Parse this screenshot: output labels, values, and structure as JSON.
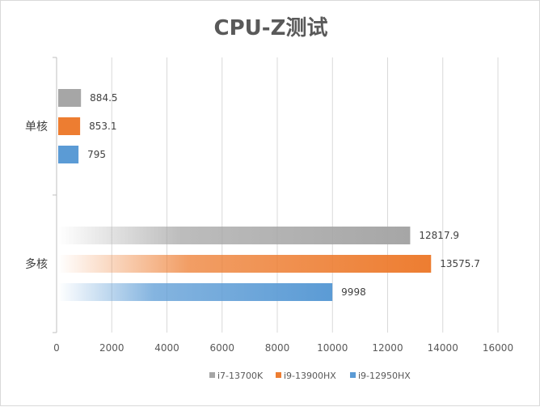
{
  "chart_data": {
    "type": "bar",
    "orientation": "horizontal",
    "title": "CPU-Z测试",
    "categories": [
      "单核",
      "多核"
    ],
    "series": [
      {
        "name": "i7-13700K",
        "color": "#a6a6a6",
        "values": [
          884.5,
          12817.9
        ],
        "labels": [
          "884.5",
          "12817.9"
        ]
      },
      {
        "name": "i9-13900HX",
        "color": "#ed7d31",
        "values": [
          853.1,
          13575.7
        ],
        "labels": [
          "853.1",
          "13575.7"
        ]
      },
      {
        "name": "i9-12950HX",
        "color": "#5b9bd5",
        "values": [
          795,
          9998
        ],
        "labels": [
          "795",
          "9998"
        ]
      }
    ],
    "xlim": [
      0,
      16000
    ],
    "xticks": [
      "0",
      "2000",
      "4000",
      "6000",
      "8000",
      "10000",
      "12000",
      "14000",
      "16000"
    ],
    "grid": true,
    "legend_position": "bottom"
  }
}
